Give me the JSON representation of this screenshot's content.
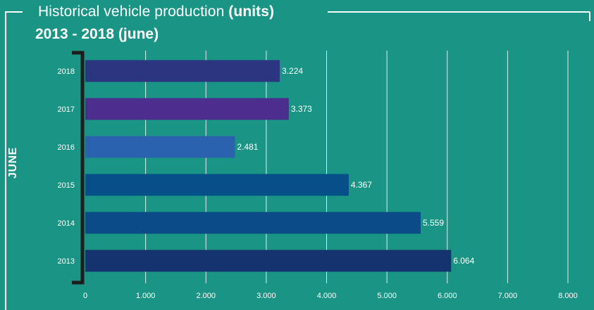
{
  "header": {
    "title_prefix": "Historical vehicle production ",
    "title_units": "(units)",
    "subtitle": "2013 - 2018 (june)"
  },
  "side_label": "JUNE",
  "colors": {
    "background": "#1a9484",
    "text": "#ffffff",
    "bracket": "#1d1d1d"
  },
  "chart_data": {
    "type": "bar",
    "orientation": "horizontal",
    "categories": [
      "2018",
      "2017",
      "2016",
      "2015",
      "2014",
      "2013"
    ],
    "values": [
      3224,
      3373,
      2481,
      4367,
      5559,
      6064
    ],
    "value_labels": [
      "3.224",
      "3.373",
      "2.481",
      "4.367",
      "5.559",
      "6.064"
    ],
    "bar_colors": [
      "#2b3580",
      "#4b2e8e",
      "#2a62ae",
      "#064f88",
      "#0a4c87",
      "#14336f"
    ],
    "xlim": [
      0,
      8000
    ],
    "xticks": [
      0,
      1000,
      2000,
      3000,
      4000,
      5000,
      6000,
      7000,
      8000
    ],
    "xtick_labels": [
      "0",
      "1.000",
      "2.000",
      "3.000",
      "4.000",
      "5.000",
      "6.000",
      "7.000",
      "8.000"
    ],
    "grid": true,
    "title": "Historical vehicle production (units)",
    "subtitle": "2013 - 2018 (june)"
  }
}
